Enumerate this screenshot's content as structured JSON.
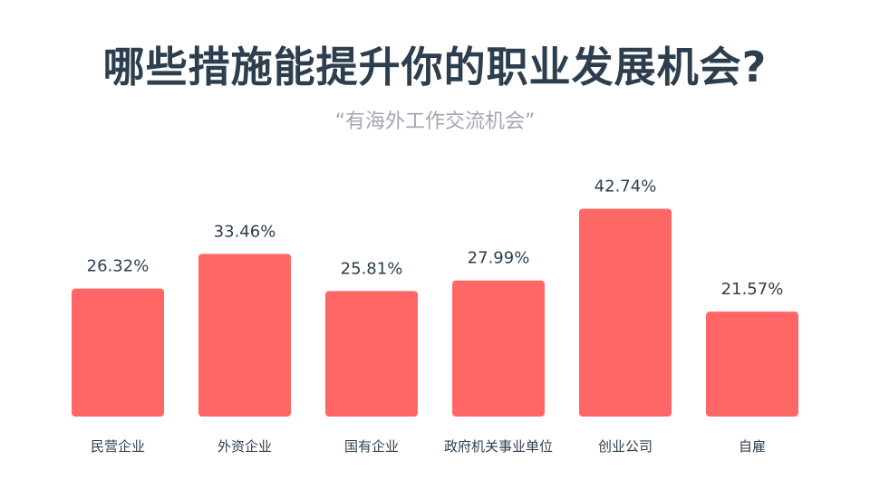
{
  "chart_data": {
    "type": "bar",
    "title": "哪些措施能提升你的职业发展机会?",
    "subtitle": "“有海外工作交流机会”",
    "categories": [
      "民营企业",
      "外资企业",
      "国有企业",
      "政府机关事业单位",
      "创业公司",
      "自雇"
    ],
    "values": [
      26.32,
      33.46,
      25.81,
      27.99,
      42.74,
      21.57
    ],
    "value_labels": [
      "26.32%",
      "33.46%",
      "25.81%",
      "27.99%",
      "42.74%",
      "21.57%"
    ],
    "ylim": [
      0,
      100
    ],
    "grid": false,
    "legend": "none",
    "bar_color": "#ff6767"
  },
  "colors": {
    "title": "#2d3e4f",
    "subtitle": "#a3a7b0",
    "value_label": "#2d3e4f",
    "category_label": "#2d3e4f"
  }
}
